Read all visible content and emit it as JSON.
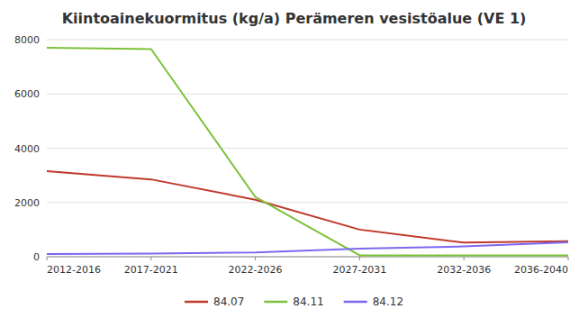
{
  "chart_data": {
    "type": "line",
    "title": "Kiintoainekuormitus (kg/a) Perämeren vesistöalue (VE 1)",
    "categories": [
      "2012-2016",
      "2017-2021",
      "2022-2026",
      "2027-2031",
      "2032-2036",
      "2036-2040"
    ],
    "series": [
      {
        "name": "84.07",
        "color": "#C0392B",
        "values": [
          3150,
          2850,
          2100,
          1000,
          520,
          570
        ]
      },
      {
        "name": "84.11",
        "color": "#7DC13A",
        "values": [
          7700,
          7650,
          2200,
          50,
          50,
          50
        ]
      },
      {
        "name": "84.12",
        "color": "#7B68EE",
        "values": [
          100,
          120,
          160,
          300,
          380,
          530
        ]
      }
    ],
    "ylim": [
      0,
      8000
    ],
    "yticks": [
      0,
      2000,
      4000,
      6000,
      8000
    ],
    "grid": true,
    "legend": "bottom"
  }
}
